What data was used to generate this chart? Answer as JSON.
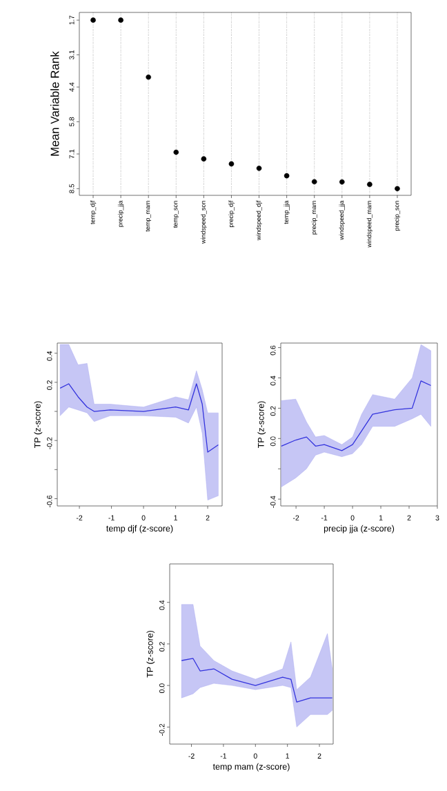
{
  "chart_data": [
    {
      "type": "scatter",
      "ylabel": "Mean Variable Rank",
      "categories": [
        "temp_djf",
        "precip_jja",
        "temp_mam",
        "temp_son",
        "windspeed_son",
        "precip_djf",
        "windspeed_djf",
        "temp_jja",
        "precip_mam",
        "windspeed_jja",
        "windspeed_mam",
        "precip_son"
      ],
      "values": [
        1.7,
        1.7,
        4.0,
        7.03,
        7.3,
        7.5,
        7.68,
        7.98,
        8.22,
        8.23,
        8.33,
        8.5
      ],
      "color": "#000000",
      "marker": "circle",
      "grid": "x",
      "ylim": [
        8.77,
        1.39
      ],
      "yticks": [
        1.7,
        3.1,
        4.4,
        5.8,
        7.1,
        8.5
      ]
    },
    {
      "type": "line",
      "xlabel": "temp djf (z-score)",
      "ylabel": "TP (z-score)",
      "x": [
        -2.6,
        -2.33,
        -2.04,
        -1.76,
        -1.54,
        -1.04,
        0,
        1.0,
        1.4,
        1.65,
        1.83,
        2.0,
        2.33
      ],
      "series": [
        {
          "color": "#3333dd",
          "values": [
            0.16,
            0.19,
            0.1,
            0.03,
            0.0,
            0.01,
            0.0,
            0.03,
            0.01,
            0.19,
            0.05,
            -0.28,
            -0.23
          ],
          "lower": [
            -0.03,
            0.03,
            0.01,
            -0.01,
            -0.07,
            -0.03,
            -0.03,
            -0.04,
            -0.08,
            0.03,
            -0.15,
            -0.61,
            -0.58
          ],
          "upper": [
            0.46,
            0.46,
            0.32,
            0.33,
            0.05,
            0.05,
            0.03,
            0.1,
            0.08,
            0.28,
            0.15,
            -0.01,
            -0.01
          ]
        }
      ],
      "xlim": [
        -2.69,
        2.45
      ],
      "ylim": [
        -0.65,
        0.47
      ],
      "xticks": [
        -2,
        -1,
        0,
        1,
        2
      ],
      "yticks": [
        0.4,
        0.2,
        {
          "value": 0,
          "label": null
        },
        -0.2,
        {
          "value": -0.4,
          "label": null
        },
        -0.6
      ]
    },
    {
      "type": "line",
      "xlabel": "precip jja (z-score)",
      "ylabel": "TP (z-score)",
      "x": [
        -2.52,
        -2.01,
        -1.63,
        -1.31,
        -1.0,
        -0.38,
        0,
        0.32,
        0.71,
        1.49,
        2.11,
        2.42,
        2.77
      ],
      "series": [
        {
          "color": "#3333dd",
          "values": [
            -0.05,
            -0.01,
            0.01,
            -0.05,
            -0.04,
            -0.08,
            -0.04,
            0.05,
            0.16,
            0.19,
            0.2,
            0.38,
            0.35
          ],
          "lower": [
            -0.32,
            -0.26,
            -0.2,
            -0.11,
            -0.09,
            -0.12,
            -0.1,
            -0.04,
            0.08,
            0.08,
            0.13,
            0.16,
            0.08
          ],
          "upper": [
            0.25,
            0.26,
            0.11,
            0.01,
            0.02,
            -0.04,
            0.01,
            0.16,
            0.29,
            0.26,
            0.4,
            0.62,
            0.58
          ]
        }
      ],
      "xlim": [
        -2.54,
        3.0
      ],
      "ylim": [
        -0.445,
        0.63
      ],
      "xticks": [
        -2,
        -1,
        0,
        1,
        2,
        3
      ],
      "yticks": [
        0.6,
        0.4,
        0.2,
        {
          "value": 0,
          "label": "0.0"
        },
        {
          "value": -0.2,
          "label": null
        },
        -0.4
      ]
    },
    {
      "type": "line",
      "xlabel": "temp mam (z-score)",
      "ylabel": "TP (z-score)",
      "x": [
        -2.31,
        -1.95,
        -1.73,
        -1.3,
        -0.73,
        0,
        0.85,
        1.11,
        1.29,
        1.72,
        2.25,
        2.4
      ],
      "series": [
        {
          "color": "#3333dd",
          "values": [
            0.12,
            0.13,
            0.07,
            0.08,
            0.03,
            0.0,
            0.04,
            0.03,
            -0.08,
            -0.06,
            -0.06,
            -0.06
          ],
          "lower": [
            -0.06,
            -0.04,
            -0.01,
            0.01,
            0.0,
            -0.02,
            0.0,
            -0.01,
            -0.2,
            -0.14,
            -0.14,
            -0.12
          ],
          "upper": [
            0.39,
            0.39,
            0.19,
            0.12,
            0.07,
            0.03,
            0.08,
            0.21,
            -0.02,
            0.04,
            0.25,
            0.08
          ]
        }
      ],
      "xlim": [
        -2.68,
        2.43
      ],
      "ylim": [
        -0.282,
        0.585
      ],
      "xticks": [
        -2,
        -1,
        0,
        1,
        2
      ],
      "yticks": [
        0.4,
        0.2,
        {
          "value": 0,
          "label": "0.0"
        },
        -0.2
      ]
    }
  ]
}
